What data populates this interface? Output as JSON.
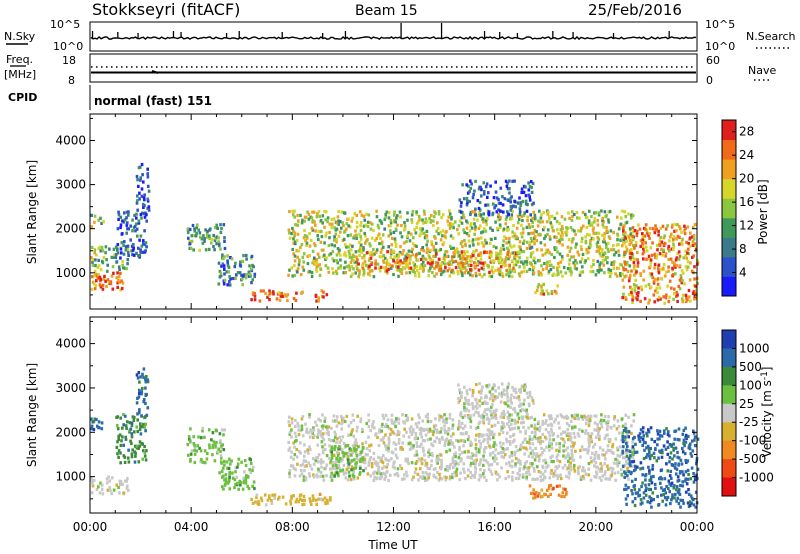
{
  "header": {
    "station": "Stokkseyri (fitACF)",
    "beam": "Beam 15",
    "date": "25/Feb/2016"
  },
  "strip": {
    "nsky_label": "N.Sky",
    "nsky_ticks": [
      "10^5",
      "10^0"
    ],
    "nsearch_label": "N.Search",
    "nsearch_ticks": [
      "10^5",
      "10^0"
    ],
    "freq_label": "Freq.",
    "freq_unit": "[MHz]",
    "freq_ticks": [
      "18",
      "8"
    ],
    "nave_label": "Nave",
    "nave_ticks": [
      "60",
      "0"
    ],
    "cpid_label": "CPID",
    "cpid_value": "normal (fast) 151"
  },
  "chart_data": [
    {
      "type": "heatmap",
      "name": "power",
      "ylabel": "Slant Range [km]",
      "xlabel": "",
      "x_ticks": [
        "00:00",
        "04:00",
        "08:00",
        "12:00",
        "16:00",
        "20:00",
        "00:00"
      ],
      "xlim_hours": [
        0,
        24
      ],
      "y_ticks": [
        1000,
        2000,
        3000,
        4000
      ],
      "ylim": [
        180,
        4600
      ],
      "colorbar_label": "Power [dB]",
      "colorbar_ticks": [
        4,
        8,
        12,
        16,
        20,
        24,
        28
      ],
      "colorbar_range": [
        0,
        30
      ],
      "colors": [
        "#1a1aff",
        "#2b52c8",
        "#3a7a8a",
        "#3f9a5a",
        "#8cc63f",
        "#d6d62a",
        "#f0a020",
        "#f06a1a",
        "#e01e1e"
      ],
      "regions": [
        {
          "t": [
            0,
            1.3
          ],
          "r": [
            600,
            1000
          ],
          "level": 0.85
        },
        {
          "t": [
            0,
            1.5
          ],
          "r": [
            1000,
            1600
          ],
          "level": 0.45
        },
        {
          "t": [
            0,
            0.5
          ],
          "r": [
            2000,
            2300
          ],
          "level": 0.5
        },
        {
          "t": [
            1.0,
            2.2
          ],
          "r": [
            1300,
            2400
          ],
          "level": 0.2
        },
        {
          "t": [
            1.8,
            2.3
          ],
          "r": [
            2300,
            3500
          ],
          "level": 0.15
        },
        {
          "t": [
            3.8,
            5.3
          ],
          "r": [
            1500,
            2100
          ],
          "level": 0.35
        },
        {
          "t": [
            5.0,
            6.5
          ],
          "r": [
            700,
            1400
          ],
          "level": 0.3
        },
        {
          "t": [
            6.3,
            9.5
          ],
          "r": [
            350,
            600
          ],
          "level": 0.85
        },
        {
          "t": [
            7.8,
            21.5
          ],
          "r": [
            900,
            2400
          ],
          "level": 0.55
        },
        {
          "t": [
            10.5,
            17.0
          ],
          "r": [
            1000,
            1500
          ],
          "level": 0.75
        },
        {
          "t": [
            14.5,
            17.5
          ],
          "r": [
            2300,
            3100
          ],
          "level": 0.2
        },
        {
          "t": [
            17.5,
            18.5
          ],
          "r": [
            500,
            750
          ],
          "level": 0.7
        },
        {
          "t": [
            21.0,
            24.0
          ],
          "r": [
            300,
            2100
          ],
          "level": 0.75
        }
      ]
    },
    {
      "type": "heatmap",
      "name": "velocity",
      "ylabel": "Slant Range [km]",
      "xlabel": "Time UT",
      "x_ticks": [
        "00:00",
        "04:00",
        "08:00",
        "12:00",
        "16:00",
        "20:00",
        "00:00"
      ],
      "xlim_hours": [
        0,
        24
      ],
      "y_ticks": [
        1000,
        2000,
        3000,
        4000
      ],
      "ylim": [
        180,
        4600
      ],
      "colorbar_label": "Velocity [m s^-1]",
      "colorbar_ticks": [
        "1000",
        "500",
        "100",
        "25",
        "-25",
        "-100",
        "-500",
        "-1000"
      ],
      "colors": [
        "#1f3fb0",
        "#2b6aa8",
        "#3a8a3a",
        "#6cc040",
        "#c8c8c8",
        "#d8b030",
        "#f08a20",
        "#f04a14",
        "#e01010"
      ],
      "regions": [
        {
          "t": [
            0,
            1.5
          ],
          "r": [
            600,
            1000
          ],
          "level": 4
        },
        {
          "t": [
            0,
            0.5
          ],
          "r": [
            2000,
            2300
          ],
          "level": 1
        },
        {
          "t": [
            1.0,
            2.2
          ],
          "r": [
            1300,
            2400
          ],
          "level": 2
        },
        {
          "t": [
            1.8,
            2.3
          ],
          "r": [
            2300,
            3500
          ],
          "level": 1
        },
        {
          "t": [
            3.8,
            5.3
          ],
          "r": [
            1300,
            2100
          ],
          "level": 3
        },
        {
          "t": [
            5.0,
            6.5
          ],
          "r": [
            700,
            1400
          ],
          "level": 3
        },
        {
          "t": [
            6.3,
            9.5
          ],
          "r": [
            350,
            600
          ],
          "level": 5
        },
        {
          "t": [
            7.8,
            21.5
          ],
          "r": [
            900,
            2400
          ],
          "level": 4
        },
        {
          "t": [
            9.5,
            10.8
          ],
          "r": [
            1000,
            1700
          ],
          "level": 3
        },
        {
          "t": [
            14.5,
            17.5
          ],
          "r": [
            2300,
            3100
          ],
          "level": 4
        },
        {
          "t": [
            17.3,
            18.8
          ],
          "r": [
            500,
            800
          ],
          "level": 6
        },
        {
          "t": [
            21.0,
            24.0
          ],
          "r": [
            300,
            2100
          ],
          "level": 1
        }
      ]
    }
  ]
}
